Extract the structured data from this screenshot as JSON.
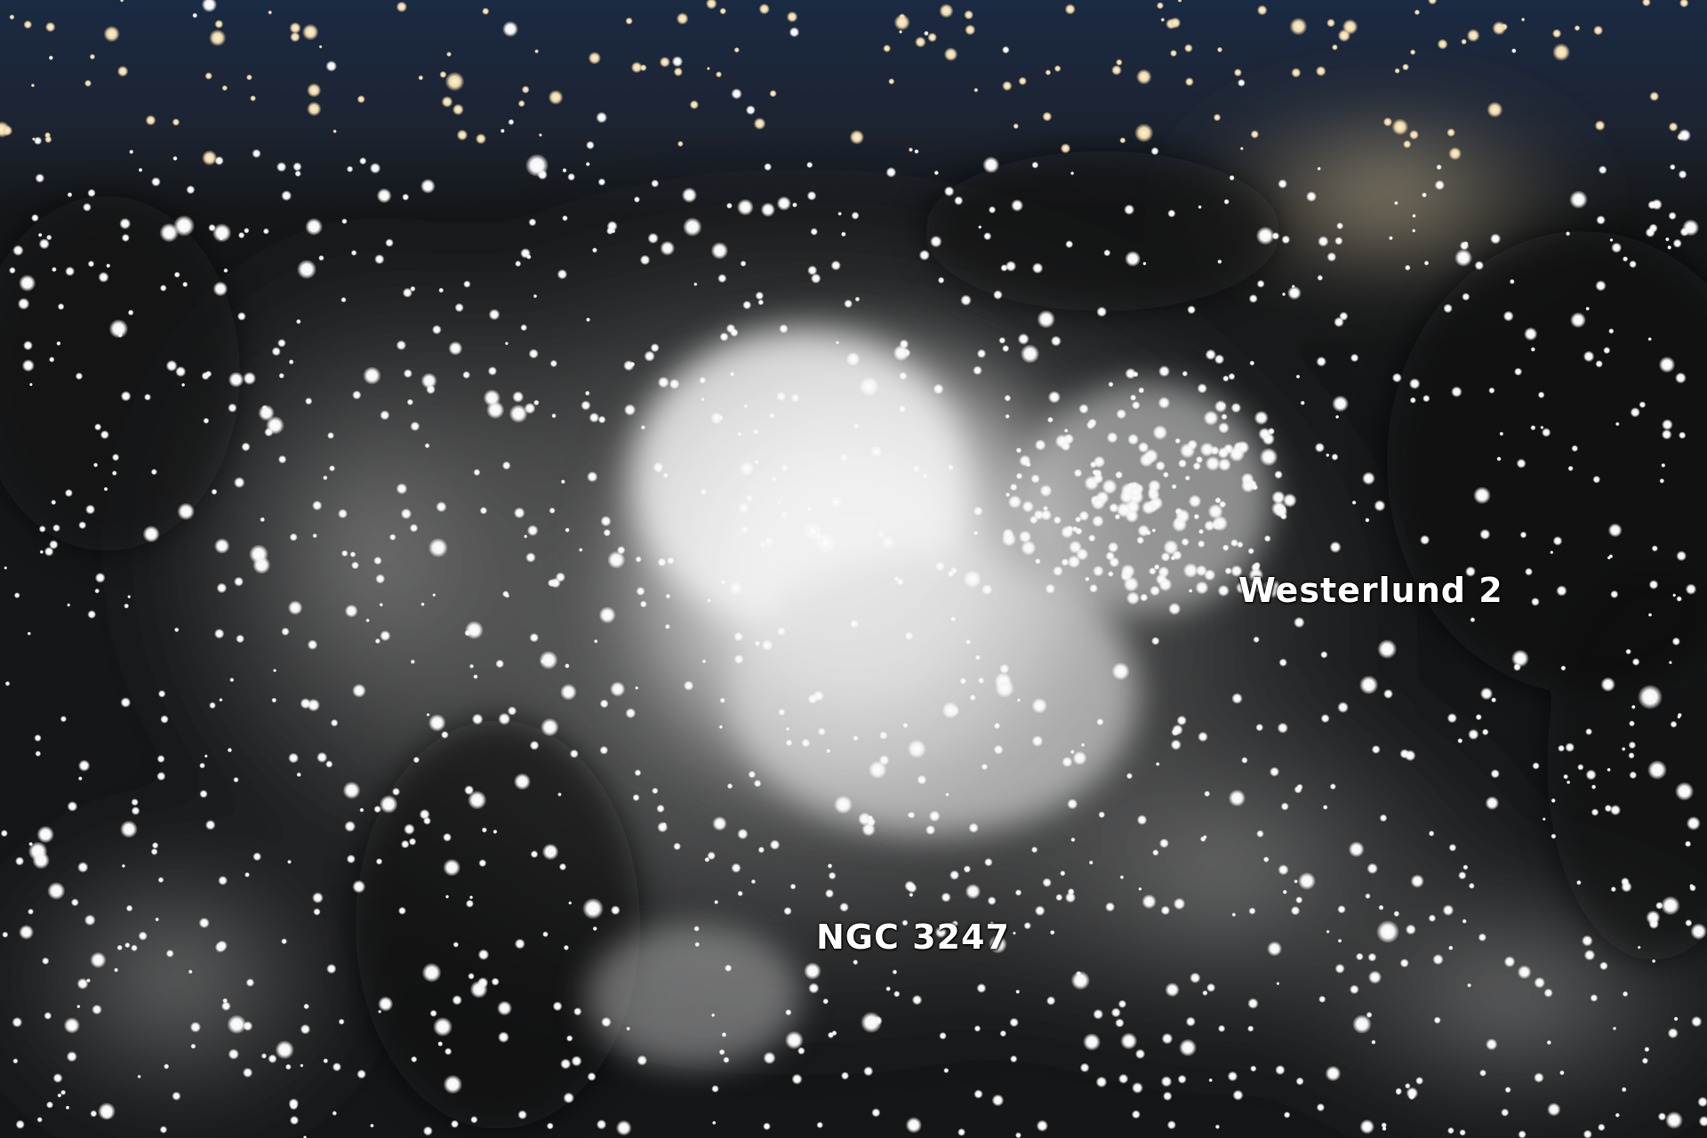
{
  "image": {
    "labels": {
      "westerlund": "Westerlund 2",
      "ngc": "NGC 3247"
    },
    "colors": {
      "background": "#121417",
      "top_band": "#1c2a40",
      "nebula_core": "#f4f4f4",
      "nebula_mid": "#b9b9b9",
      "star_warm": "#f2dcb0",
      "star_white": "#ffffff",
      "label_text": "#ffffff"
    }
  }
}
